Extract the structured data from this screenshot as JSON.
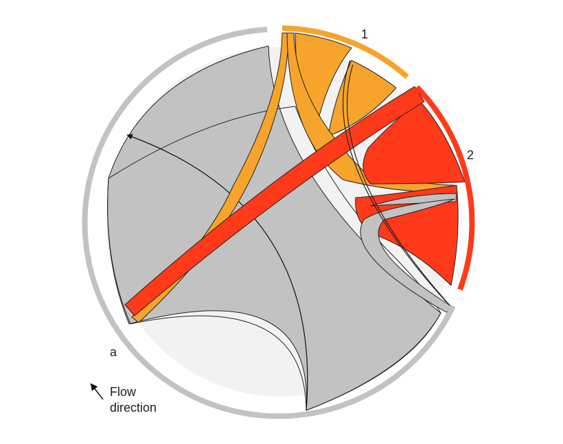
{
  "diagram": {
    "type": "chord",
    "groups": [
      {
        "label": "a",
        "color": "#c2c2c2"
      },
      {
        "label": "1",
        "color": "#f7a42c"
      },
      {
        "label": "2",
        "color": "#fe3a1b"
      }
    ],
    "colors": {
      "background": "#f2f2f2",
      "outline": "#222222",
      "self_a": "#c2c2c2",
      "group_1": "#f7a42c",
      "group_2": "#fe3a1b"
    },
    "legend": {
      "line1": "Flow",
      "line2": "direction",
      "icon": "arrow-icon"
    }
  }
}
